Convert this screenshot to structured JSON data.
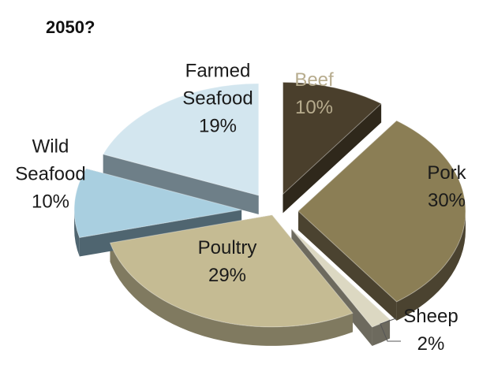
{
  "chart_data": {
    "type": "pie",
    "title": "2050?",
    "slices": [
      {
        "name": "Beef",
        "value": 10,
        "label_lines": [
          "Beef",
          "10%"
        ],
        "color": "#4a3f2c",
        "side": "#2f281b",
        "text_color": "#b7ac8e"
      },
      {
        "name": "Pork",
        "value": 30,
        "label_lines": [
          "Pork",
          "30%"
        ],
        "color": "#8b7e55",
        "side": "#4b4330",
        "text_color": "#1a1a1a"
      },
      {
        "name": "Sheep",
        "value": 2,
        "label_lines": [
          "Sheep",
          "2%"
        ],
        "color": "#dcd8c2",
        "side": "#6d6a5e",
        "text_color": "#1a1a1a"
      },
      {
        "name": "Poultry",
        "value": 29,
        "label_lines": [
          "Poultry",
          "29%"
        ],
        "color": "#c5bb93",
        "side": "#807a60",
        "text_color": "#1a1a1a"
      },
      {
        "name": "Wild Seafood",
        "value": 10,
        "label_lines": [
          "Wild",
          "Seafood",
          "10%"
        ],
        "color": "#a9cfe0",
        "side": "#4f6570",
        "text_color": "#1a1a1a"
      },
      {
        "name": "Farmed Seafood",
        "value": 19,
        "label_lines": [
          "Farmed",
          "Seafood",
          "19%"
        ],
        "color": "#d3e6ef",
        "side": "#6e7f88",
        "text_color": "#1a1a1a"
      }
    ]
  }
}
